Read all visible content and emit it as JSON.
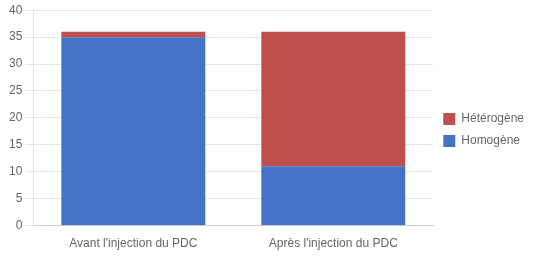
{
  "chart_data": {
    "type": "bar",
    "stacked": true,
    "categories": [
      "Avant l'injection du PDC",
      "Après l'injection du PDC"
    ],
    "series": [
      {
        "name": "Homogène",
        "color": "#4472C4",
        "values": [
          35,
          11
        ]
      },
      {
        "name": "Hétérogène",
        "color": "#C0504D",
        "values": [
          1,
          25
        ]
      }
    ],
    "ylim": [
      0,
      40
    ],
    "yticks": [
      0,
      5,
      10,
      15,
      20,
      25,
      30,
      35,
      40
    ],
    "grid": true,
    "legend": "right"
  }
}
